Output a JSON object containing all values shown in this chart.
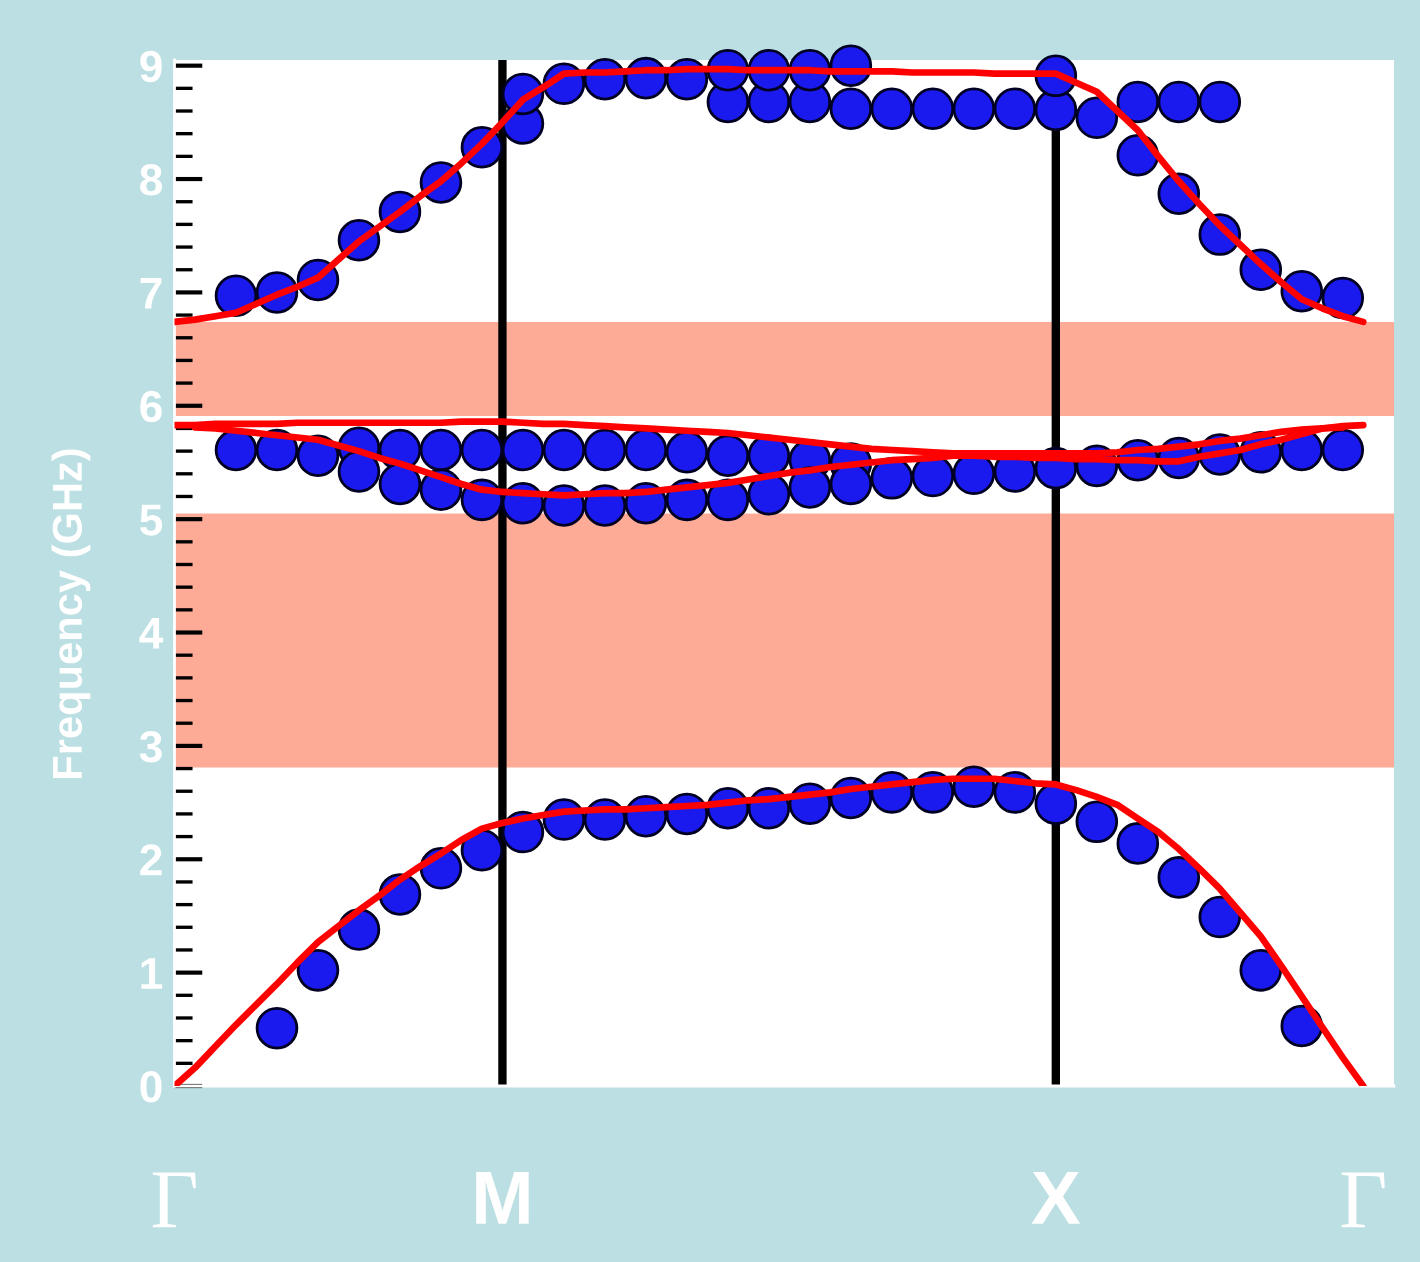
{
  "chart_data": {
    "type": "scatter",
    "ylabel": "Frequency (GHz)",
    "categories": [
      "Γ",
      null,
      null,
      null,
      null,
      null,
      null,
      null,
      null,
      null,
      null,
      null,
      null,
      null,
      null,
      null,
      "M",
      null,
      null,
      null,
      null,
      null,
      null,
      null,
      null,
      null,
      null,
      null,
      null,
      null,
      null,
      null,
      null,
      null,
      null,
      null,
      null,
      null,
      null,
      null,
      null,
      null,
      null,
      "X",
      null,
      null,
      null,
      null,
      null,
      null,
      null,
      null,
      null,
      null,
      null,
      null,
      null,
      null,
      "Γ"
    ],
    "ylim": [
      0,
      9.05
    ],
    "yticks": [
      0,
      1,
      2,
      3,
      4,
      5,
      6,
      7,
      8,
      9,
      {
        "value": 0.2,
        "label": null
      },
      {
        "value": 0.4,
        "label": null
      },
      {
        "value": 0.6,
        "label": null
      },
      {
        "value": 0.8,
        "label": null
      },
      {
        "value": 1.2,
        "label": null
      },
      {
        "value": 1.4,
        "label": null
      },
      {
        "value": 1.6,
        "label": null
      },
      {
        "value": 1.8,
        "label": null
      },
      {
        "value": 2.2,
        "label": null
      },
      {
        "value": 2.4,
        "label": null
      },
      {
        "value": 2.6,
        "label": null
      },
      {
        "value": 2.8,
        "label": null
      },
      {
        "value": 3.2,
        "label": null
      },
      {
        "value": 3.4,
        "label": null
      },
      {
        "value": 3.6,
        "label": null
      },
      {
        "value": 3.8,
        "label": null
      },
      {
        "value": 4.2,
        "label": null
      },
      {
        "value": 4.4,
        "label": null
      },
      {
        "value": 4.6,
        "label": null
      },
      {
        "value": 4.8,
        "label": null
      },
      {
        "value": 5.2,
        "label": null
      },
      {
        "value": 5.4,
        "label": null
      },
      {
        "value": 5.6,
        "label": null
      },
      {
        "value": 5.8,
        "label": null
      },
      {
        "value": 6.2,
        "label": null
      },
      {
        "value": 6.4,
        "label": null
      },
      {
        "value": 6.6,
        "label": null
      },
      {
        "value": 6.8,
        "label": null
      },
      {
        "value": 7.2,
        "label": null
      },
      {
        "value": 7.4,
        "label": null
      },
      {
        "value": 7.6,
        "label": null
      },
      {
        "value": 7.8,
        "label": null
      },
      {
        "value": 8.2,
        "label": null
      },
      {
        "value": 8.4,
        "label": null
      },
      {
        "value": 8.6,
        "label": null
      },
      {
        "value": 8.8,
        "label": null
      }
    ],
    "ref_lines": [
      {
        "axis": "x",
        "value": "M",
        "color": "#000000"
      },
      {
        "axis": "x",
        "value": "X",
        "color": "#000000"
      }
    ],
    "bands": [
      {
        "axis": "y",
        "from": 2.81,
        "to": 5.05,
        "color": "#fdab96"
      },
      {
        "axis": "y",
        "from": 5.91,
        "to": 6.74,
        "color": "#fdab96"
      }
    ],
    "series": [
      {
        "marker": "circle",
        "color": "#1a1aee",
        "values": [
          null,
          null,
          null,
          null,
          null,
          0.51,
          null,
          1.02,
          null,
          1.38,
          null,
          1.69,
          null,
          1.92,
          null,
          2.08,
          null,
          2.24,
          null,
          2.35,
          null,
          2.35,
          null,
          2.38,
          null,
          2.4,
          null,
          2.45,
          null,
          2.45,
          null,
          2.49,
          null,
          2.54,
          null,
          2.59,
          null,
          2.59,
          null,
          2.64,
          null,
          2.59,
          null,
          2.49,
          null,
          2.33,
          null,
          2.14,
          null,
          1.84,
          null,
          1.49,
          null,
          1.02,
          null,
          0.53,
          null,
          null,
          null
        ]
      },
      {
        "marker": "circle",
        "color": "#1a1aee",
        "values": [
          null,
          null,
          null,
          5.61,
          null,
          5.61,
          null,
          5.56,
          null,
          5.63,
          null,
          5.61,
          null,
          5.61,
          null,
          5.61,
          null,
          5.61,
          null,
          5.61,
          null,
          5.61,
          null,
          5.61,
          null,
          5.59,
          null,
          5.56,
          null,
          5.56,
          null,
          5.52,
          null,
          5.49,
          null,
          5.36,
          null,
          5.38,
          null,
          5.4,
          null,
          5.42,
          null,
          5.45,
          null,
          5.47,
          null,
          5.52,
          null,
          5.54,
          null,
          5.57,
          null,
          5.59,
          null,
          5.61,
          null,
          5.61,
          null
        ]
      },
      {
        "marker": "circle",
        "color": "#1a1aee",
        "values": [
          null,
          null,
          null,
          null,
          null,
          null,
          null,
          null,
          null,
          5.42,
          null,
          5.31,
          null,
          5.26,
          null,
          5.17,
          null,
          5.14,
          null,
          5.12,
          null,
          5.12,
          null,
          5.14,
          null,
          5.17,
          null,
          5.17,
          null,
          5.22,
          null,
          5.28,
          null,
          5.31,
          null,
          null,
          null,
          null,
          null,
          null,
          null,
          null,
          null,
          null,
          null,
          null,
          null,
          null,
          null,
          null,
          null,
          null,
          null,
          null,
          null,
          null,
          null,
          null,
          null
        ]
      },
      {
        "marker": "circle",
        "color": "#1a1aee",
        "values": [
          null,
          null,
          null,
          6.97,
          null,
          7.0,
          null,
          7.11,
          null,
          7.46,
          null,
          7.71,
          null,
          7.97,
          null,
          8.28,
          null,
          8.49,
          null,
          8.84,
          null,
          8.88,
          null,
          8.89,
          null,
          8.88,
          null,
          8.68,
          null,
          8.68,
          null,
          8.68,
          null,
          8.62,
          null,
          8.62,
          null,
          8.62,
          null,
          8.62,
          null,
          8.62,
          null,
          8.61,
          null,
          8.54,
          null,
          8.21,
          null,
          7.87,
          null,
          7.51,
          null,
          7.2,
          null,
          7.01,
          null,
          6.95,
          null
        ]
      },
      {
        "marker": "circle",
        "color": "#1a1aee",
        "values": [
          null,
          null,
          null,
          null,
          null,
          null,
          null,
          null,
          null,
          null,
          null,
          null,
          null,
          null,
          null,
          null,
          null,
          8.75,
          null,
          null,
          null,
          null,
          null,
          null,
          null,
          null,
          null,
          8.96,
          null,
          8.96,
          null,
          8.96,
          null,
          9.0,
          null,
          null,
          null,
          null,
          null,
          null,
          null,
          null,
          null,
          8.91,
          null,
          null,
          null,
          8.68,
          null,
          8.68,
          null,
          8.68,
          null,
          null,
          null,
          null,
          null,
          null,
          null
        ]
      },
      {
        "type": "line",
        "line_style": "solid",
        "color": "#ff0000",
        "values": [
          0,
          0.16,
          0.35,
          0.54,
          0.72,
          0.9,
          1.09,
          1.27,
          1.41,
          1.55,
          1.68,
          1.82,
          1.94,
          2.05,
          2.17,
          2.27,
          2.32,
          2.36,
          2.39,
          2.42,
          2.43,
          2.44,
          2.44,
          2.45,
          2.46,
          2.47,
          2.48,
          2.5,
          2.52,
          2.53,
          2.55,
          2.57,
          2.59,
          2.62,
          2.64,
          2.66,
          2.68,
          2.7,
          2.71,
          2.71,
          2.71,
          2.69,
          2.67,
          2.66,
          2.61,
          2.55,
          2.48,
          2.36,
          2.24,
          2.09,
          1.92,
          1.74,
          1.53,
          1.32,
          1.06,
          0.79,
          0.52,
          0.25,
          0
        ]
      },
      {
        "type": "line",
        "line_style": "solid",
        "color": "#ff0000",
        "values": [
          5.83,
          5.83,
          5.84,
          5.84,
          5.84,
          5.84,
          5.85,
          5.85,
          5.85,
          5.85,
          5.85,
          5.85,
          5.85,
          5.85,
          5.86,
          5.86,
          5.86,
          5.85,
          5.84,
          5.84,
          5.83,
          5.82,
          5.81,
          5.8,
          5.79,
          5.78,
          5.77,
          5.76,
          5.74,
          5.72,
          5.7,
          5.68,
          5.66,
          5.64,
          5.62,
          5.61,
          5.6,
          5.59,
          5.58,
          5.58,
          5.58,
          5.58,
          5.58,
          5.58,
          5.58,
          5.58,
          5.59,
          5.61,
          5.62,
          5.64,
          5.66,
          5.69,
          5.71,
          5.74,
          5.77,
          5.79,
          5.8,
          5.82,
          5.83
        ]
      },
      {
        "type": "line",
        "line_style": "solid",
        "color": "#ff0000",
        "values": [
          null,
          5.81,
          5.8,
          5.78,
          5.76,
          5.74,
          5.72,
          5.7,
          5.65,
          5.6,
          5.54,
          5.49,
          5.43,
          5.37,
          5.31,
          5.26,
          5.24,
          5.23,
          5.22,
          5.21,
          5.22,
          5.23,
          5.23,
          5.24,
          5.26,
          5.28,
          5.3,
          5.32,
          5.35,
          5.38,
          5.41,
          5.43,
          5.46,
          5.48,
          5.5,
          5.52,
          5.53,
          5.54,
          5.56,
          5.56,
          5.55,
          5.55,
          5.54,
          5.54,
          5.53,
          5.53,
          5.52,
          5.52,
          5.51,
          5.51,
          5.55,
          5.58,
          5.61,
          5.66,
          5.7,
          5.75,
          5.8,
          5.81,
          null
        ]
      },
      {
        "type": "line",
        "line_style": "solid",
        "color": "#ff0000",
        "values": [
          6.74,
          6.76,
          6.79,
          6.82,
          6.9,
          6.98,
          7.05,
          7.13,
          7.29,
          7.45,
          7.58,
          7.71,
          7.85,
          7.98,
          8.14,
          8.31,
          8.5,
          8.7,
          8.81,
          8.93,
          8.94,
          8.94,
          8.95,
          8.96,
          8.96,
          8.97,
          8.97,
          8.97,
          8.96,
          8.96,
          8.96,
          8.96,
          8.95,
          8.95,
          8.95,
          8.95,
          8.94,
          8.94,
          8.94,
          8.94,
          8.93,
          8.93,
          8.93,
          8.93,
          8.85,
          8.77,
          8.6,
          8.43,
          8.2,
          7.98,
          7.78,
          7.59,
          7.42,
          7.25,
          7.09,
          6.94,
          6.86,
          6.79,
          6.74
        ]
      }
    ]
  }
}
